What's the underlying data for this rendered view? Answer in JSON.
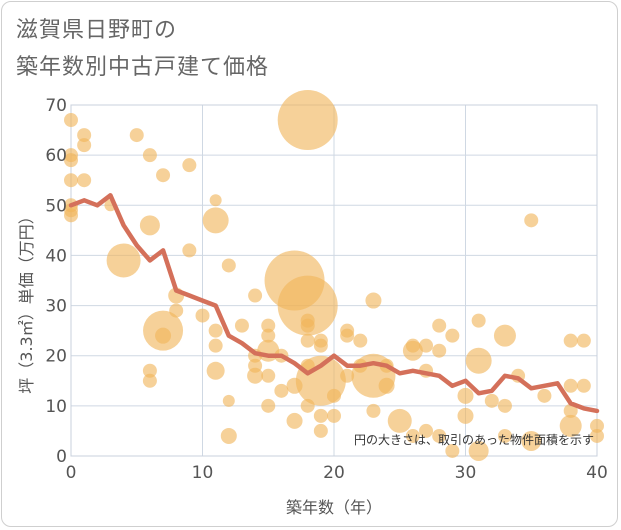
{
  "title": "滋賀県日野町の\n築年数別中古戸建て価格",
  "chart_data": {
    "type": "scatter",
    "title": "滋賀県日野町の築年数別中古戸建て価格",
    "xlabel": "築年数（年）",
    "ylabel": "坪（3.3㎡）単価（万円）",
    "xlim": [
      0,
      40
    ],
    "ylim": [
      0,
      70
    ],
    "x_ticks": [
      0,
      10,
      20,
      30,
      40
    ],
    "y_ticks": [
      0,
      10,
      20,
      30,
      40,
      50,
      60,
      70
    ],
    "grid": true,
    "note": "円の大きさは、取引のあった物件面積を示す",
    "colors": {
      "bubble": "#f0b45a",
      "line": "#d4705a",
      "grid": "#cfd8e3",
      "plot_border": "#c8d0dc"
    },
    "bubbles": [
      {
        "x": 0,
        "y": 67,
        "size": 7
      },
      {
        "x": 0,
        "y": 60,
        "size": 7
      },
      {
        "x": 0,
        "y": 59,
        "size": 7
      },
      {
        "x": 0,
        "y": 55,
        "size": 7
      },
      {
        "x": 0,
        "y": 50,
        "size": 7
      },
      {
        "x": 0,
        "y": 49,
        "size": 7
      },
      {
        "x": 0,
        "y": 48,
        "size": 7
      },
      {
        "x": 1,
        "y": 64,
        "size": 7
      },
      {
        "x": 1,
        "y": 62,
        "size": 7
      },
      {
        "x": 1,
        "y": 55,
        "size": 7
      },
      {
        "x": 3,
        "y": 50,
        "size": 6
      },
      {
        "x": 4,
        "y": 39,
        "size": 17
      },
      {
        "x": 5,
        "y": 64,
        "size": 7
      },
      {
        "x": 6,
        "y": 60,
        "size": 7
      },
      {
        "x": 6,
        "y": 46,
        "size": 10
      },
      {
        "x": 6,
        "y": 17,
        "size": 7
      },
      {
        "x": 6,
        "y": 15,
        "size": 7
      },
      {
        "x": 7,
        "y": 56,
        "size": 7
      },
      {
        "x": 7,
        "y": 25,
        "size": 20
      },
      {
        "x": 7,
        "y": 24,
        "size": 8
      },
      {
        "x": 8,
        "y": 32,
        "size": 8
      },
      {
        "x": 8,
        "y": 29,
        "size": 7
      },
      {
        "x": 9,
        "y": 58,
        "size": 7
      },
      {
        "x": 9,
        "y": 41,
        "size": 7
      },
      {
        "x": 10,
        "y": 28,
        "size": 7
      },
      {
        "x": 11,
        "y": 51,
        "size": 6
      },
      {
        "x": 11,
        "y": 47,
        "size": 13
      },
      {
        "x": 11,
        "y": 25,
        "size": 7
      },
      {
        "x": 11,
        "y": 22,
        "size": 7
      },
      {
        "x": 11,
        "y": 17,
        "size": 9
      },
      {
        "x": 12,
        "y": 38,
        "size": 7
      },
      {
        "x": 12,
        "y": 11,
        "size": 6
      },
      {
        "x": 12,
        "y": 4,
        "size": 8
      },
      {
        "x": 13,
        "y": 26,
        "size": 7
      },
      {
        "x": 14,
        "y": 32,
        "size": 7
      },
      {
        "x": 14,
        "y": 20,
        "size": 7
      },
      {
        "x": 14,
        "y": 18,
        "size": 7
      },
      {
        "x": 14,
        "y": 16,
        "size": 8
      },
      {
        "x": 15,
        "y": 26,
        "size": 7
      },
      {
        "x": 15,
        "y": 24,
        "size": 7
      },
      {
        "x": 15,
        "y": 21,
        "size": 11
      },
      {
        "x": 15,
        "y": 16,
        "size": 7
      },
      {
        "x": 15,
        "y": 10,
        "size": 7
      },
      {
        "x": 16,
        "y": 20,
        "size": 7
      },
      {
        "x": 16,
        "y": 13,
        "size": 7
      },
      {
        "x": 17,
        "y": 35,
        "size": 30
      },
      {
        "x": 17,
        "y": 14,
        "size": 8
      },
      {
        "x": 17,
        "y": 7,
        "size": 8
      },
      {
        "x": 18,
        "y": 67,
        "size": 30
      },
      {
        "x": 18,
        "y": 30,
        "size": 30
      },
      {
        "x": 18,
        "y": 27,
        "size": 7
      },
      {
        "x": 18,
        "y": 26,
        "size": 7
      },
      {
        "x": 18,
        "y": 23,
        "size": 7
      },
      {
        "x": 18,
        "y": 18,
        "size": 7
      },
      {
        "x": 18,
        "y": 10,
        "size": 7
      },
      {
        "x": 19,
        "y": 23,
        "size": 7
      },
      {
        "x": 19,
        "y": 22,
        "size": 7
      },
      {
        "x": 19,
        "y": 15,
        "size": 25
      },
      {
        "x": 19,
        "y": 8,
        "size": 7
      },
      {
        "x": 19,
        "y": 5,
        "size": 7
      },
      {
        "x": 20,
        "y": 12,
        "size": 7
      },
      {
        "x": 20,
        "y": 8,
        "size": 7
      },
      {
        "x": 21,
        "y": 25,
        "size": 7
      },
      {
        "x": 21,
        "y": 24,
        "size": 7
      },
      {
        "x": 21,
        "y": 16,
        "size": 7
      },
      {
        "x": 22,
        "y": 23,
        "size": 7
      },
      {
        "x": 22,
        "y": 18,
        "size": 7
      },
      {
        "x": 23,
        "y": 31,
        "size": 8
      },
      {
        "x": 23,
        "y": 16,
        "size": 22
      },
      {
        "x": 23,
        "y": 9,
        "size": 7
      },
      {
        "x": 24,
        "y": 14,
        "size": 8
      },
      {
        "x": 24,
        "y": 18,
        "size": 7
      },
      {
        "x": 25,
        "y": 7,
        "size": 12
      },
      {
        "x": 26,
        "y": 21,
        "size": 10
      },
      {
        "x": 26,
        "y": 22,
        "size": 7
      },
      {
        "x": 26,
        "y": 4,
        "size": 7
      },
      {
        "x": 27,
        "y": 17,
        "size": 7
      },
      {
        "x": 27,
        "y": 22,
        "size": 7
      },
      {
        "x": 27,
        "y": 5,
        "size": 7
      },
      {
        "x": 28,
        "y": 26,
        "size": 7
      },
      {
        "x": 28,
        "y": 21,
        "size": 7
      },
      {
        "x": 28,
        "y": 4,
        "size": 7
      },
      {
        "x": 29,
        "y": 24,
        "size": 7
      },
      {
        "x": 29,
        "y": 1,
        "size": 7
      },
      {
        "x": 30,
        "y": 12,
        "size": 8
      },
      {
        "x": 30,
        "y": 8,
        "size": 8
      },
      {
        "x": 31,
        "y": 27,
        "size": 7
      },
      {
        "x": 31,
        "y": 19,
        "size": 13
      },
      {
        "x": 31,
        "y": 1,
        "size": 10
      },
      {
        "x": 32,
        "y": 11,
        "size": 7
      },
      {
        "x": 33,
        "y": 24,
        "size": 11
      },
      {
        "x": 33,
        "y": 10,
        "size": 7
      },
      {
        "x": 33,
        "y": 4,
        "size": 7
      },
      {
        "x": 34,
        "y": 16,
        "size": 7
      },
      {
        "x": 35,
        "y": 47,
        "size": 7
      },
      {
        "x": 35,
        "y": 3,
        "size": 10
      },
      {
        "x": 36,
        "y": 12,
        "size": 7
      },
      {
        "x": 38,
        "y": 23,
        "size": 7
      },
      {
        "x": 38,
        "y": 14,
        "size": 7
      },
      {
        "x": 38,
        "y": 9,
        "size": 7
      },
      {
        "x": 38,
        "y": 6,
        "size": 11
      },
      {
        "x": 39,
        "y": 23,
        "size": 7
      },
      {
        "x": 39,
        "y": 14,
        "size": 7
      },
      {
        "x": 40,
        "y": 6,
        "size": 7
      },
      {
        "x": 40,
        "y": 4,
        "size": 7
      }
    ],
    "series": [
      {
        "type": "line",
        "x": [
          0,
          1,
          2,
          3,
          4,
          5,
          6,
          7,
          8,
          9,
          10,
          11,
          12,
          13,
          14,
          15,
          16,
          17,
          18,
          19,
          20,
          21,
          22,
          23,
          24,
          25,
          26,
          27,
          28,
          29,
          30,
          31,
          32,
          33,
          34,
          35,
          36,
          37,
          38,
          39,
          40
        ],
        "y": [
          50,
          51,
          50,
          52,
          46,
          42,
          39,
          41,
          33,
          32,
          31,
          30,
          24,
          22.5,
          20.5,
          20,
          20,
          18.5,
          16.5,
          18,
          20,
          18,
          18,
          18.5,
          18,
          16.5,
          17,
          16.5,
          16,
          14,
          15,
          12.5,
          13,
          16,
          15.5,
          13.5,
          14,
          14.5,
          10.5,
          9.5,
          9
        ]
      }
    ]
  }
}
